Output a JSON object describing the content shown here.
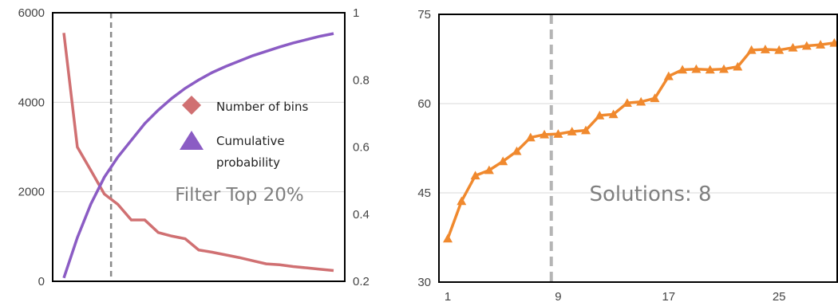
{
  "chart_data": [
    {
      "type": "line",
      "title": "",
      "xlabel": "",
      "ylabel": "",
      "grid": true,
      "legend": "right",
      "y_left_lim": [
        0,
        6000
      ],
      "y_left_ticks": [
        "0",
        "2000",
        "4000",
        "6000"
      ],
      "y_right_lim": [
        0.2,
        1
      ],
      "y_right_ticks": [
        "0.2",
        "0.4",
        "0.6",
        "0.8",
        "1"
      ],
      "x": [
        1,
        2,
        3,
        4,
        5,
        6,
        7,
        8,
        9,
        10,
        11,
        12,
        13,
        14,
        15,
        16,
        17,
        18,
        19,
        20,
        21
      ],
      "series": [
        {
          "name": "Number of bins",
          "axis": "left",
          "color": "#d07072",
          "marker": "diamond",
          "values": [
            5550,
            3000,
            2480,
            1950,
            1720,
            1370,
            1370,
            1090,
            1010,
            950,
            700,
            650,
            590,
            530,
            460,
            390,
            370,
            330,
            300,
            270,
            240
          ]
        },
        {
          "name": "Cumulative probability",
          "axis": "right",
          "color": "#8b5cc4",
          "marker": "triangle",
          "values": [
            0.21,
            0.33,
            0.43,
            0.51,
            0.57,
            0.62,
            0.67,
            0.71,
            0.745,
            0.775,
            0.8,
            0.822,
            0.84,
            0.856,
            0.872,
            0.885,
            0.898,
            0.91,
            0.92,
            0.93,
            0.938
          ]
        }
      ],
      "cutoff_x": 4.5,
      "annotation": "Filter Top 20%"
    },
    {
      "type": "line",
      "title": "",
      "xlabel": "",
      "ylabel": "",
      "grid": true,
      "ylim": [
        30,
        75
      ],
      "y_ticks": [
        "30",
        "45",
        "60",
        "75"
      ],
      "x_ticks": [
        "1",
        "9",
        "17",
        "25"
      ],
      "x_lim": [
        1,
        30
      ],
      "series": [
        {
          "color": "#f0892e",
          "marker": "triangle",
          "x": [
            1,
            2,
            3,
            4,
            5,
            6,
            7,
            8,
            9,
            10,
            11,
            12,
            13,
            14,
            15,
            16,
            17,
            18,
            19,
            20,
            21,
            22,
            23,
            24,
            25,
            26,
            27,
            28,
            29,
            30
          ],
          "values": [
            37.3,
            43.6,
            47.9,
            48.8,
            50.3,
            52.0,
            54.3,
            54.8,
            54.9,
            55.3,
            55.5,
            58.0,
            58.2,
            60.1,
            60.3,
            60.9,
            64.6,
            65.7,
            65.8,
            65.7,
            65.8,
            66.2,
            69.0,
            69.1,
            69.0,
            69.4,
            69.7,
            69.9,
            70.2,
            70.3
          ]
        }
      ],
      "cutoff_x": 8.5,
      "annotation": "Solutions: 8"
    }
  ]
}
